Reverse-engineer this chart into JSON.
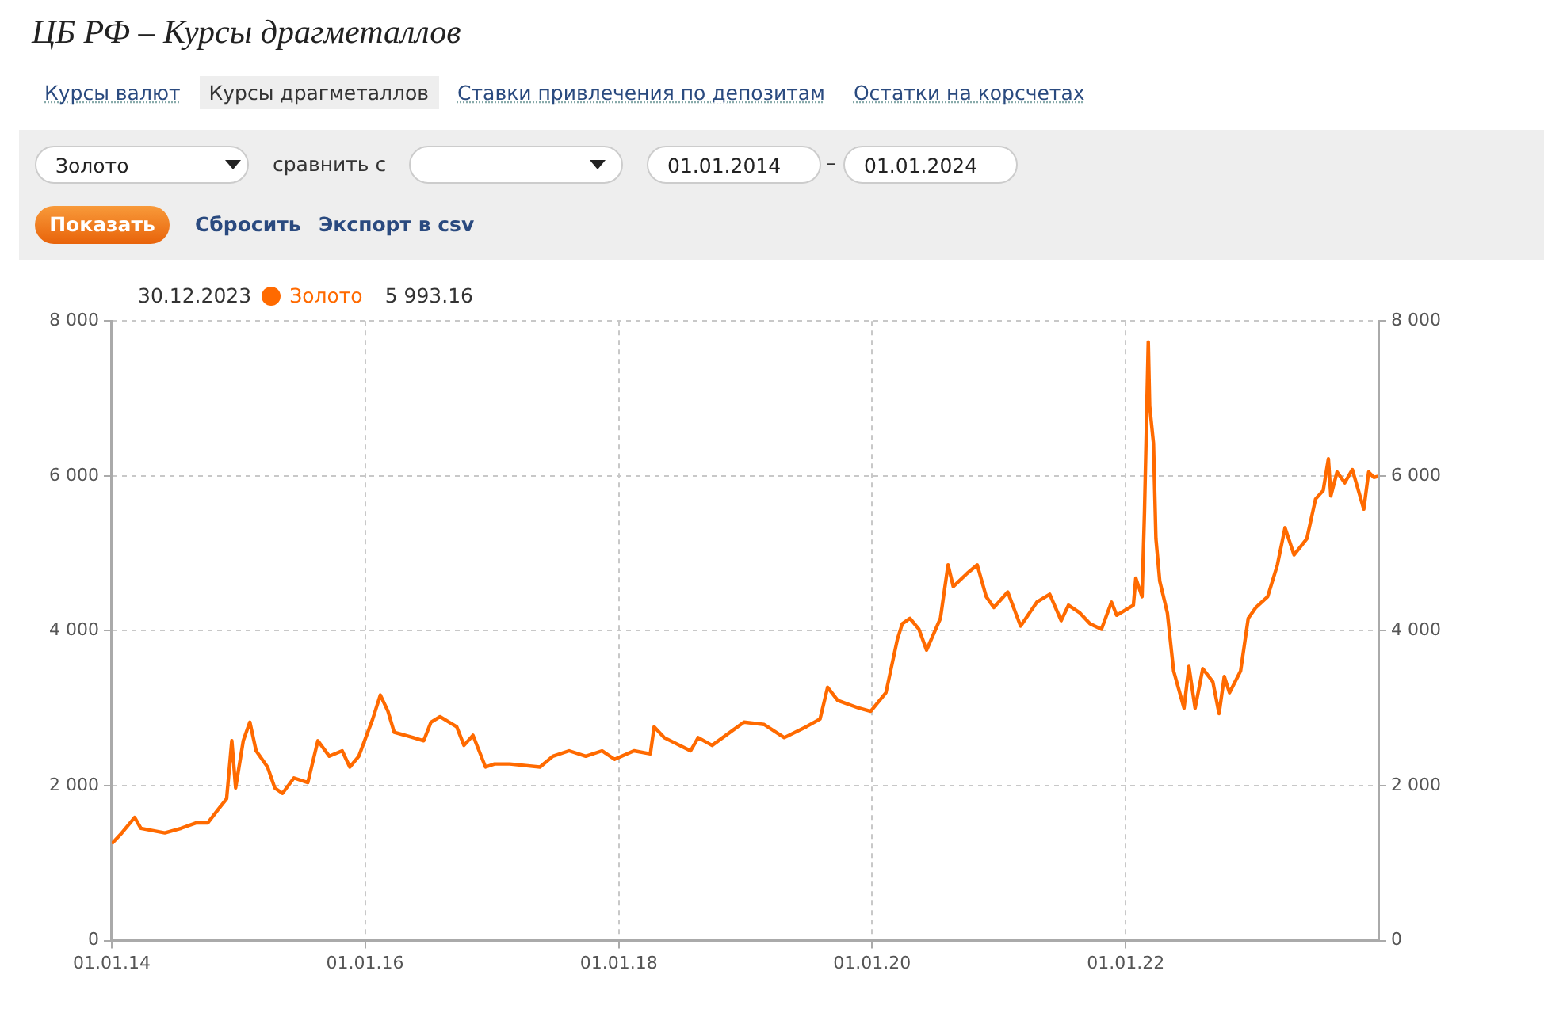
{
  "chart_data": {
    "type": "line",
    "title": "ЦБ РФ – Курсы драгметаллов",
    "annotations": [
      "Курсы валют",
      "Курсы драгметаллов",
      "Ставки привлечения по депозитам",
      "Остатки на корсчетах",
      "Золото",
      "сравнить с",
      "01.01.2014",
      "–",
      "01.01.2024",
      "Показать",
      "Сбросить",
      "Экспорт в csv",
      "30.12.2023",
      "5 993.16"
    ],
    "x": [
      "2014-01-01",
      "2014-01-30",
      "2014-03-08",
      "2014-03-26",
      "2014-06-03",
      "2014-07-20",
      "2014-09-02",
      "2014-10-05",
      "2014-11-03",
      "2014-11-28",
      "2014-12-13",
      "2014-12-24",
      "2015-01-15",
      "2015-02-03",
      "2015-02-21",
      "2015-03-26",
      "2015-04-16",
      "2015-05-08",
      "2015-06-10",
      "2015-07-20",
      "2015-08-18",
      "2015-09-20",
      "2015-10-27",
      "2015-11-18",
      "2015-12-14",
      "2016-01-23",
      "2016-02-14",
      "2016-03-07",
      "2016-03-25",
      "2016-05-19",
      "2016-06-18",
      "2016-07-09",
      "2016-08-04",
      "2016-09-21",
      "2016-10-12",
      "2016-11-07",
      "2016-12-13",
      "2017-01-08",
      "2017-02-21",
      "2017-05-19",
      "2017-06-25",
      "2017-08-11",
      "2017-09-28",
      "2017-11-14",
      "2017-12-20",
      "2018-02-14",
      "2018-04-02",
      "2018-04-13",
      "2018-05-12",
      "2018-07-27",
      "2018-08-18",
      "2018-09-27",
      "2018-12-28",
      "2019-02-24",
      "2019-04-23",
      "2019-06-25",
      "2019-08-04",
      "2019-08-26",
      "2019-09-24",
      "2019-11-25",
      "2019-12-28",
      "2020-02-10",
      "2020-03-14",
      "2020-03-28",
      "2020-04-19",
      "2020-05-15",
      "2020-06-06",
      "2020-07-16",
      "2020-08-07",
      "2020-08-22",
      "2020-10-01",
      "2020-10-30",
      "2020-11-25",
      "2020-12-17",
      "2021-01-26",
      "2021-03-04",
      "2021-04-20",
      "2021-05-27",
      "2021-06-29",
      "2021-07-20",
      "2021-08-22",
      "2021-09-20",
      "2021-10-23",
      "2021-11-21",
      "2021-12-06",
      "2022-01-23",
      "2022-01-30",
      "2022-02-17",
      "2022-02-24",
      "2022-03-07",
      "2022-03-11",
      "2022-03-22",
      "2022-03-29",
      "2022-04-09",
      "2022-05-01",
      "2022-05-19",
      "2022-06-18",
      "2022-07-02",
      "2022-07-20",
      "2022-08-11",
      "2022-09-09",
      "2022-09-27",
      "2022-10-12",
      "2022-10-27",
      "2022-11-28",
      "2022-12-20",
      "2023-01-11",
      "2023-02-14",
      "2023-03-14",
      "2023-04-05",
      "2023-05-01",
      "2023-06-07",
      "2023-07-02",
      "2023-07-24",
      "2023-08-08",
      "2023-08-15",
      "2023-09-02",
      "2023-09-24",
      "2023-10-16",
      "2023-11-18",
      "2023-12-02",
      "2023-12-17",
      "2023-12-30"
    ],
    "series": [
      {
        "name": "Золото",
        "color": "#ff6a00",
        "values": [
          1250,
          1390,
          1590,
          1450,
          1390,
          1450,
          1520,
          1520,
          1690,
          1830,
          2580,
          1970,
          2580,
          2820,
          2450,
          2240,
          1970,
          1900,
          2100,
          2040,
          2580,
          2380,
          2450,
          2240,
          2380,
          2860,
          3170,
          2960,
          2690,
          2620,
          2580,
          2820,
          2890,
          2760,
          2520,
          2650,
          2240,
          2280,
          2280,
          2240,
          2380,
          2450,
          2380,
          2450,
          2340,
          2450,
          2410,
          2760,
          2620,
          2450,
          2620,
          2520,
          2820,
          2790,
          2620,
          2760,
          2860,
          3270,
          3100,
          3000,
          2960,
          3200,
          3890,
          4090,
          4160,
          4020,
          3750,
          4160,
          4850,
          4570,
          4740,
          4850,
          4440,
          4300,
          4500,
          4060,
          4370,
          4470,
          4130,
          4330,
          4230,
          4090,
          4020,
          4370,
          4200,
          4330,
          4680,
          4440,
          5530,
          7730,
          6900,
          6420,
          5190,
          4640,
          4230,
          3480,
          3000,
          3540,
          3000,
          3510,
          3340,
          2930,
          3410,
          3200,
          3480,
          4160,
          4300,
          4440,
          4850,
          5330,
          4980,
          5190,
          5700,
          5810,
          6220,
          5740,
          6050,
          5910,
          6080,
          5570,
          6050,
          5980,
          5993.16
        ]
      }
    ],
    "xlim": [
      "2014-01-01",
      "2023-12-30"
    ],
    "xticks": [
      {
        "value": "2014-01-01",
        "label": "01.01.14"
      },
      {
        "value": "2016-01-01",
        "label": "01.01.16"
      },
      {
        "value": "2018-01-01",
        "label": "01.01.18"
      },
      {
        "value": "2020-01-01",
        "label": "01.01.20"
      },
      {
        "value": "2022-01-01",
        "label": "01.01.22"
      }
    ],
    "ylim": [
      0,
      8000
    ],
    "yticks": [
      0,
      {
        "value": 2000,
        "label": "2 000"
      },
      {
        "value": 4000,
        "label": "4 000"
      },
      {
        "value": 6000,
        "label": "6 000"
      },
      {
        "value": 8000,
        "label": "8 000"
      }
    ],
    "y2lim": [
      0,
      8000
    ],
    "y2ticks": [
      0,
      {
        "value": 2000,
        "label": "2 000"
      },
      {
        "value": 4000,
        "label": "4 000"
      },
      {
        "value": 6000,
        "label": "6 000"
      },
      {
        "value": 8000,
        "label": "8 000"
      }
    ],
    "grid": true,
    "legend": "top left",
    "marker": "none",
    "line_style": "solid"
  }
}
